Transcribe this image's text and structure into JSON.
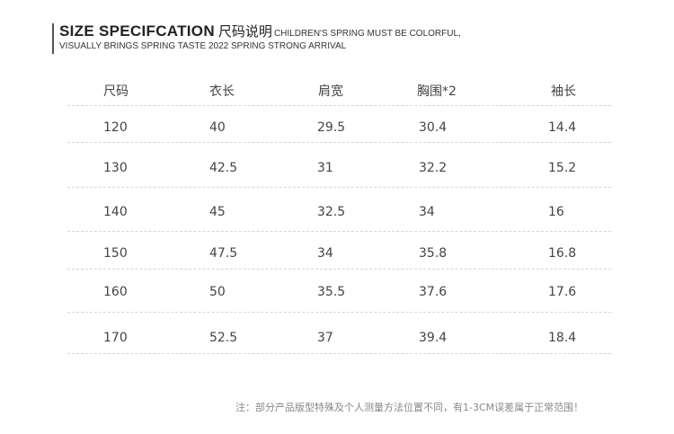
{
  "title": {
    "main": "SIZE SPECIFCATION",
    "chinese": "尺码说明",
    "tagline_1": "CHILDREN'S SPRING MUST BE COLORFUL,",
    "tagline_2": "VISUALLY BRINGS SPRING TASTE 2022 SPRING STRONG ARRIVAL"
  },
  "table": {
    "headers": [
      "尺码",
      "衣长",
      "肩宽",
      "胸围*2",
      "袖长"
    ],
    "rows": [
      [
        "120",
        "40",
        "29.5",
        "30.4",
        "14.4"
      ],
      [
        "130",
        "42.5",
        "31",
        "32.2",
        "15.2"
      ],
      [
        "140",
        "45",
        "32.5",
        "34",
        "16"
      ],
      [
        "150",
        "47.5",
        "34",
        "35.8",
        "16.8"
      ],
      [
        "160",
        "50",
        "35.5",
        "37.6",
        "17.6"
      ],
      [
        "170",
        "52.5",
        "37",
        "39.4",
        "18.4"
      ]
    ]
  },
  "note": "注：部分产品版型特殊及个人测量方法位置不同，有1-3CM误差属于正常范围！"
}
